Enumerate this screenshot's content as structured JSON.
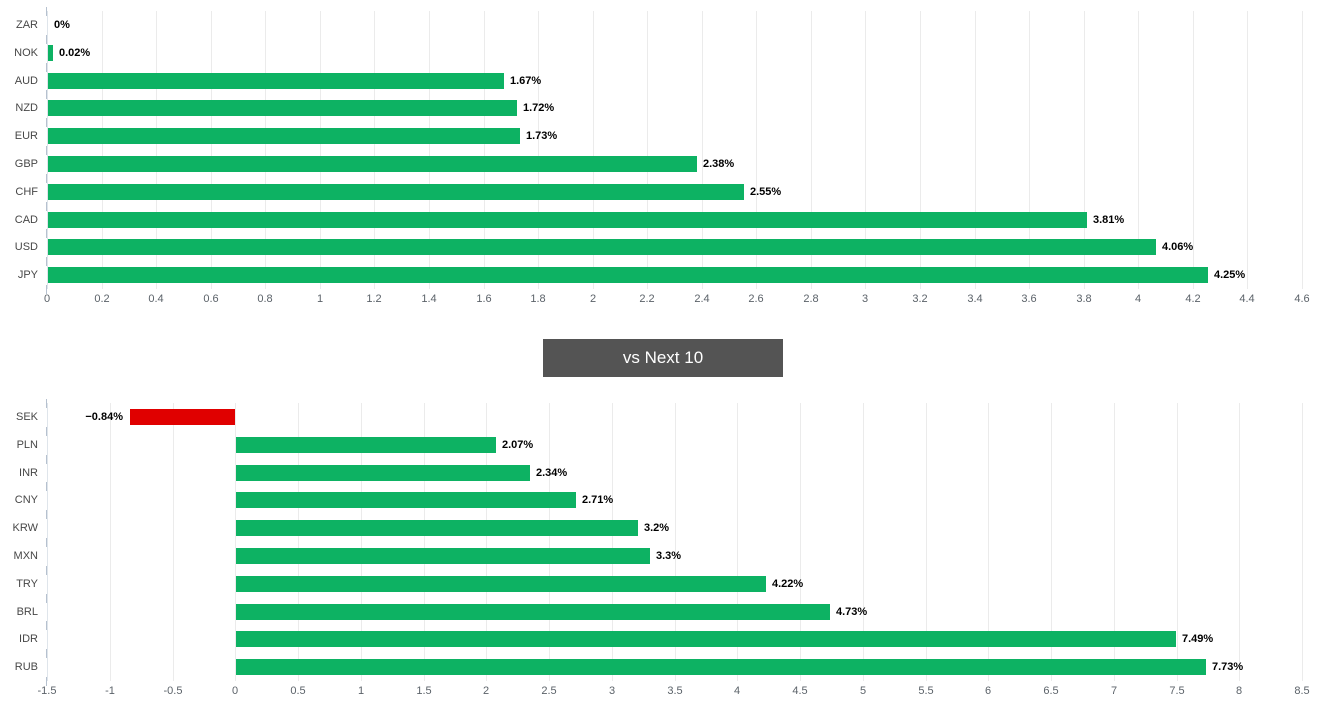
{
  "app": {
    "background": "#ffffff"
  },
  "section_divider": {
    "label": "vs Next 10",
    "background": "#545454",
    "text_color": "#ffffff"
  },
  "chart_data": [
    {
      "type": "bar",
      "orientation": "horizontal",
      "title": "",
      "xlabel": "",
      "ylabel": "",
      "grid": true,
      "legend": "none",
      "categories": [
        "ZAR",
        "NOK",
        "AUD",
        "NZD",
        "EUR",
        "GBP",
        "CHF",
        "CAD",
        "USD",
        "JPY"
      ],
      "values": [
        0,
        0.02,
        1.67,
        1.72,
        1.73,
        2.38,
        2.55,
        3.81,
        4.06,
        4.25
      ],
      "value_labels": [
        "0%",
        "0.02%",
        "1.67%",
        "1.72%",
        "1.73%",
        "2.38%",
        "2.55%",
        "3.81%",
        "4.06%",
        "4.25%"
      ],
      "xlim": [
        0,
        4.6
      ],
      "tick_step": 0.2,
      "tick_values": [
        0,
        0.2,
        0.4,
        0.6,
        0.8,
        1,
        1.2,
        1.4,
        1.6,
        1.8,
        2,
        2.2,
        2.4,
        2.6,
        2.8,
        3,
        3.2,
        3.4,
        3.6,
        3.8,
        4,
        4.2,
        4.4,
        4.6
      ],
      "tick_labels": [
        "0",
        "0.2",
        "0.4",
        "0.6",
        "0.8",
        "1",
        "1.2",
        "1.4",
        "1.6",
        "1.8",
        "2",
        "2.2",
        "2.4",
        "2.6",
        "2.8",
        "3",
        "3.2",
        "3.4",
        "3.6",
        "3.8",
        "4",
        "4.2",
        "4.4",
        "4.6"
      ],
      "bar_color": "#0db263",
      "negative_color": "#e00000"
    },
    {
      "type": "bar",
      "orientation": "horizontal",
      "title": "",
      "xlabel": "",
      "ylabel": "",
      "grid": true,
      "legend": "none",
      "categories": [
        "SEK",
        "PLN",
        "INR",
        "CNY",
        "KRW",
        "MXN",
        "TRY",
        "BRL",
        "IDR",
        "RUB"
      ],
      "values": [
        -0.84,
        2.07,
        2.34,
        2.71,
        3.2,
        3.3,
        4.22,
        4.73,
        7.49,
        7.73
      ],
      "value_labels": [
        "−0.84%",
        "2.07%",
        "2.34%",
        "2.71%",
        "3.2%",
        "3.3%",
        "4.22%",
        "4.73%",
        "7.49%",
        "7.73%"
      ],
      "xlim": [
        -1.5,
        8.5
      ],
      "tick_step": 0.5,
      "tick_values": [
        -1.5,
        -1,
        -0.5,
        0,
        0.5,
        1,
        1.5,
        2,
        2.5,
        3,
        3.5,
        4,
        4.5,
        5,
        5.5,
        6,
        6.5,
        7,
        7.5,
        8,
        8.5
      ],
      "tick_labels": [
        "-1.5",
        "-1",
        "-0.5",
        "0",
        "0.5",
        "1",
        "1.5",
        "2",
        "2.5",
        "3",
        "3.5",
        "4",
        "4.5",
        "5",
        "5.5",
        "6",
        "6.5",
        "7",
        "7.5",
        "8",
        "8.5"
      ],
      "bar_color": "#0db263",
      "negative_color": "#e00000"
    }
  ]
}
